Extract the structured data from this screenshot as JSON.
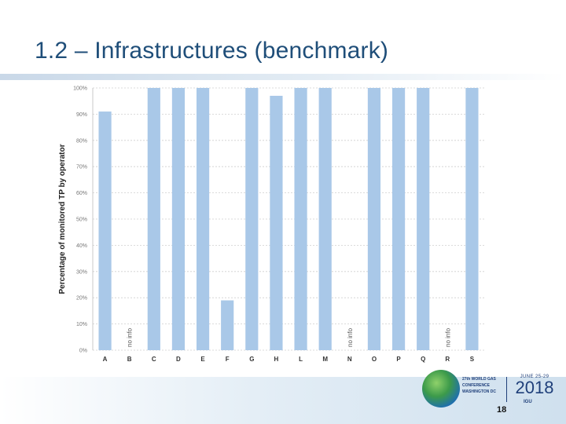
{
  "slide": {
    "title": "1.2 – Infrastructures (benchmark)",
    "page_number": "18"
  },
  "logo": {
    "line1": "27th WORLD GAS",
    "line2": "CONFERENCE",
    "line3": "WASHINGTON DC",
    "dates": "JUNE 25-29",
    "year": "2018",
    "org": "IGU"
  },
  "chart_data": {
    "type": "bar",
    "title": "",
    "xlabel": "",
    "ylabel": "Percentage of monitored TP by operator",
    "ylim": [
      0,
      100
    ],
    "yticks": [
      0,
      10,
      20,
      30,
      40,
      50,
      60,
      70,
      80,
      90,
      100
    ],
    "ytick_labels": [
      "0%",
      "10%",
      "20%",
      "30%",
      "40%",
      "50%",
      "60%",
      "70%",
      "80%",
      "90%",
      "100%"
    ],
    "grid": true,
    "categories": [
      "A",
      "B",
      "C",
      "D",
      "E",
      "F",
      "G",
      "H",
      "L",
      "M",
      "N",
      "O",
      "P",
      "Q",
      "R",
      "S"
    ],
    "values": [
      91,
      null,
      100,
      100,
      100,
      19,
      100,
      97,
      100,
      100,
      null,
      100,
      100,
      100,
      null,
      100
    ],
    "annotations": [
      {
        "category": "B",
        "text": "no info"
      },
      {
        "category": "N",
        "text": "no info"
      },
      {
        "category": "R",
        "text": "no info"
      }
    ],
    "bar_color": "#a9c8e8"
  }
}
